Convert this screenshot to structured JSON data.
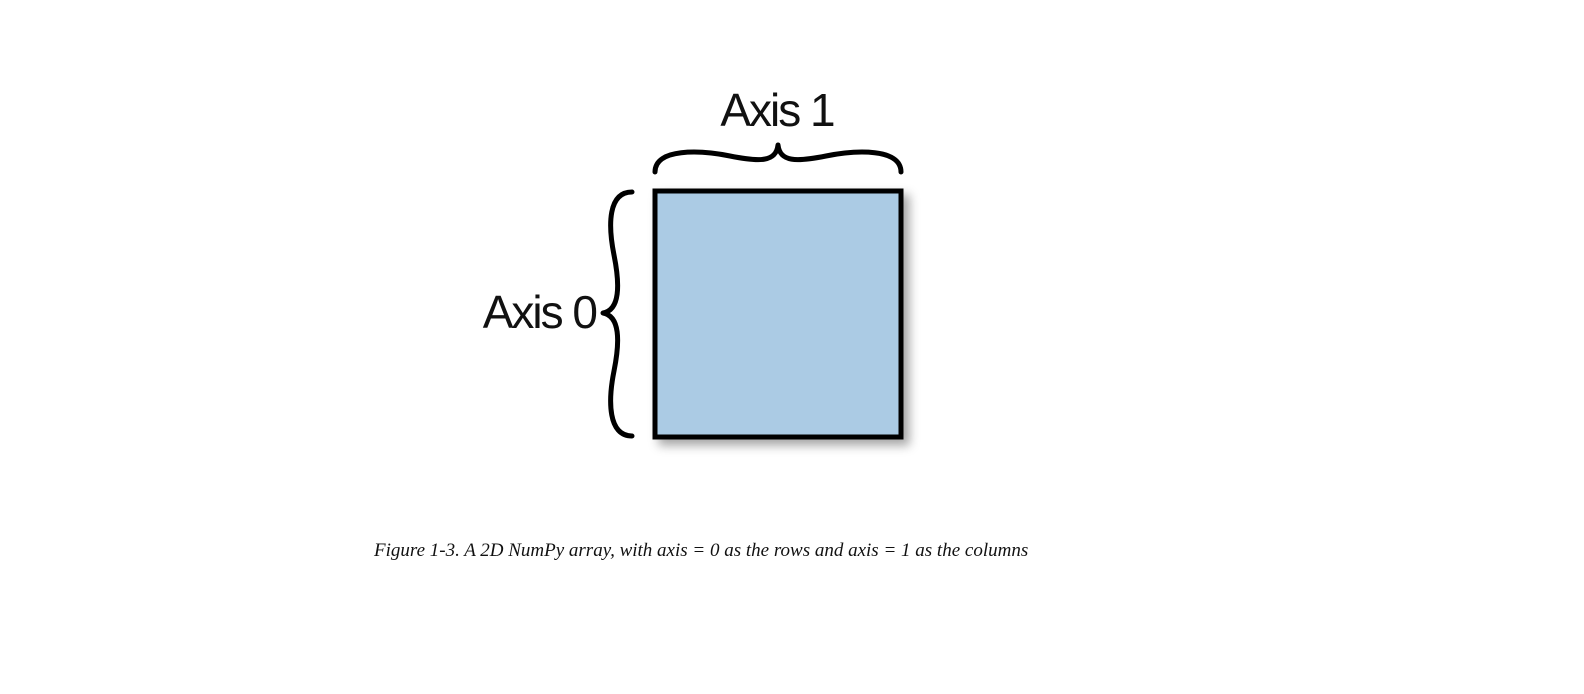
{
  "diagram": {
    "axis1_label": "Axis 1",
    "axis0_label": "Axis 0",
    "array_fill_color": "#abcbe4",
    "border_color": "#000000"
  },
  "caption": "Figure 1-3. A 2D NumPy array, with axis = 0 as the rows and axis = 1 as the columns"
}
